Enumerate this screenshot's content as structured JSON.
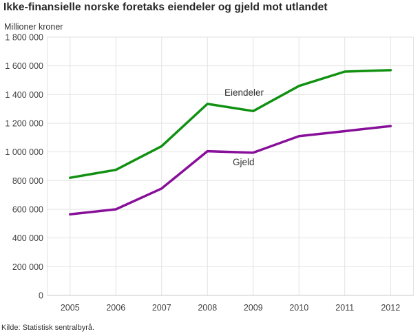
{
  "page": {
    "source": "Kilde: Statistisk sentralbyrå."
  },
  "chart_data": {
    "type": "line",
    "title": "Ikke-finansielle norske foretaks eiendeler og gjeld mot utlandet",
    "ylabel": "Millioner kroner",
    "xlabel": "",
    "categories": [
      "2005",
      "2006",
      "2007",
      "2008",
      "2009",
      "2010",
      "2011",
      "2012"
    ],
    "series": [
      {
        "name": "Eiendeler",
        "color": "#119111",
        "values": [
          820000,
          875000,
          1040000,
          1335000,
          1285000,
          1460000,
          1560000,
          1570000
        ]
      },
      {
        "name": "Gjeld",
        "color": "#870f99",
        "values": [
          565000,
          600000,
          745000,
          1005000,
          995000,
          1110000,
          1145000,
          1180000
        ]
      }
    ],
    "ylim": [
      0,
      1800000
    ],
    "ytick_step": 200000,
    "ytick_labels": [
      "0",
      "200 000",
      "400 000",
      "600 000",
      "800 000",
      "1 000 000",
      "1 200 000",
      "1 400 000",
      "1 600 000",
      "1 800 000"
    ],
    "grid": true,
    "legend": "inline-labels",
    "grid_color": "#e2e2e2",
    "axis_color": "#c8c8c8"
  }
}
